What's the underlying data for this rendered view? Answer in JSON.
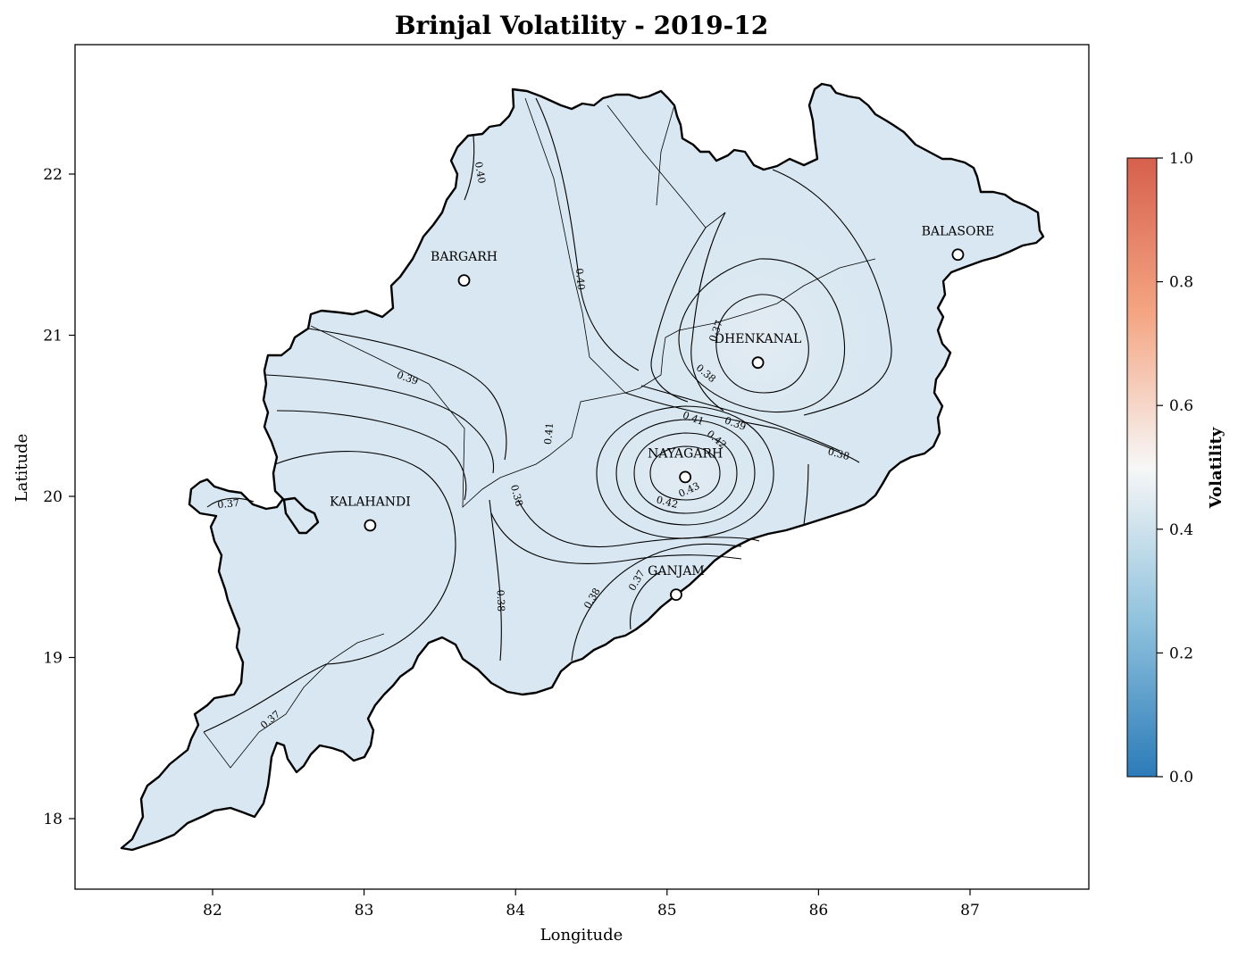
{
  "title": "Brinjal Volatility - 2019-12",
  "xlabel": "Longitude",
  "ylabel": "Latitude",
  "x_ticks": [
    "82",
    "83",
    "84",
    "85",
    "86",
    "87"
  ],
  "y_ticks": [
    "22",
    "21",
    "20",
    "19",
    "18"
  ],
  "colorbar": {
    "label": "Volatility",
    "range": [
      0.0,
      1.0
    ],
    "ticks": [
      "0.0",
      "0.2",
      "0.4",
      "0.6",
      "0.8",
      "1.0"
    ],
    "colors": {
      "low": "#2b7bb9",
      "mid": "#f7f7f7",
      "high": "#d6604d",
      "fill": "#d8e7f1"
    }
  },
  "cities": [
    {
      "name": "BARGARH",
      "lon": 83.66,
      "lat": 21.34
    },
    {
      "name": "BALASORE",
      "lon": 86.92,
      "lat": 21.5
    },
    {
      "name": "DHENKANAL",
      "lon": 85.6,
      "lat": 20.83
    },
    {
      "name": "NAYAGARH",
      "lon": 85.12,
      "lat": 20.12
    },
    {
      "name": "KALAHANDI",
      "lon": 83.04,
      "lat": 19.82
    },
    {
      "name": "GANJAM",
      "lon": 85.06,
      "lat": 19.39
    }
  ],
  "contour_labels": [
    "0.40",
    "0.40",
    "0.39",
    "0.41",
    "0.38",
    "0.38",
    "0.37",
    "0.38",
    "0.37",
    "0.41",
    "0.39",
    "0.42",
    "0.43",
    "0.42",
    "0.38",
    "0.38",
    "0.37",
    "0.37"
  ]
}
